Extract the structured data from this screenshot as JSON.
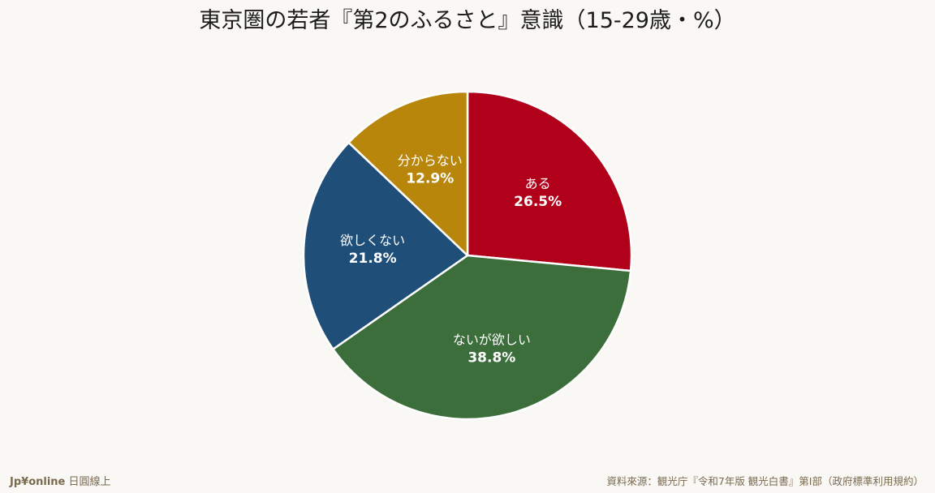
{
  "chart_data": {
    "type": "pie",
    "title": "東京圏の若者『第2のふるさと』意識（15-29歳・%）",
    "slices": [
      {
        "label": "ある",
        "value": 26.5,
        "value_label": "26.5%",
        "color": "#b0001a"
      },
      {
        "label": "ないが欲しい",
        "value": 38.8,
        "value_label": "38.8%",
        "color": "#3c6e3c"
      },
      {
        "label": "欲しくない",
        "value": 21.8,
        "value_label": "21.8%",
        "color": "#1f4e79"
      },
      {
        "label": "分からない",
        "value": 12.9,
        "value_label": "12.9%",
        "color": "#b8860b"
      }
    ],
    "start_angle": "12 o'clock",
    "direction": "clockwise",
    "legend": "none"
  },
  "footer": {
    "brand": "Jp¥online",
    "brand_sub": "日圓線上",
    "source": "資料來源：観光庁『令和7年版 観光白書』第Ⅰ部（政府標準利用規約）"
  },
  "colors": {
    "background": "#faf8f4",
    "slice_border": "#ffffff",
    "label_text": "#ffffff",
    "footer_text": "#7a6a4f"
  }
}
